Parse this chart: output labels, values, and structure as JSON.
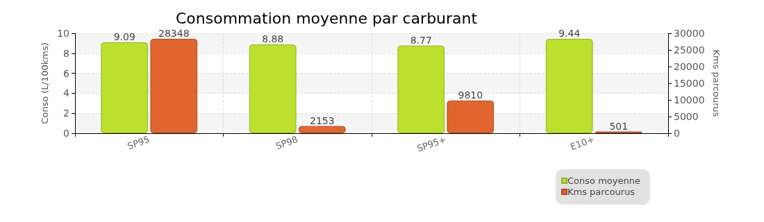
{
  "chart_data": {
    "type": "bar",
    "title": "Consommation moyenne par carburant",
    "categories": [
      "SP95",
      "SP98",
      "SP95+",
      "E10+"
    ],
    "series": [
      {
        "name": "Conso moyenne",
        "color": "#bce02e",
        "values": [
          9.09,
          8.88,
          8.77,
          9.44
        ]
      },
      {
        "name": "Kms parcourus",
        "color": "#e0652f",
        "values": [
          28348,
          2153,
          9810,
          501
        ],
        "axis": "y2"
      }
    ],
    "ylabel": "Conso (L/100kms)",
    "y2label": "Kms parcourus",
    "ylim": [
      0,
      10
    ],
    "yticks": [
      0,
      2,
      4,
      6,
      8,
      10
    ],
    "y2lim": [
      0,
      30000
    ],
    "y2ticks": [
      0,
      5000,
      10000,
      15000,
      20000,
      25000,
      30000
    ],
    "data_labels": true,
    "grid": true,
    "legend": "bottom right"
  }
}
